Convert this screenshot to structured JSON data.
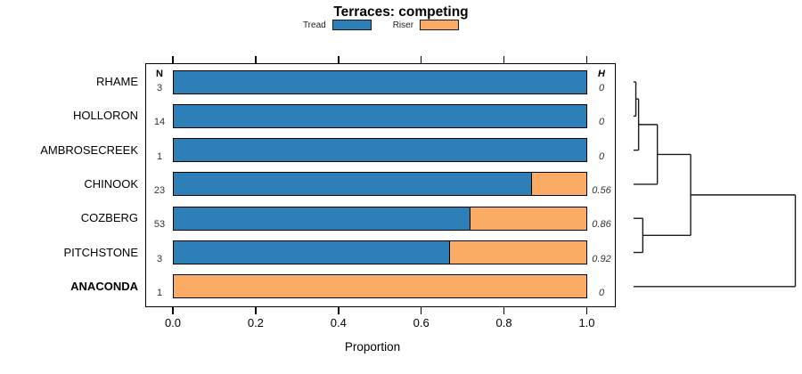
{
  "title": "Terraces: competing",
  "legend": {
    "items": [
      {
        "label": "Tread"
      },
      {
        "label": "Riser"
      }
    ]
  },
  "chart_data": {
    "type": "bar",
    "stacked": true,
    "orientation": "horizontal",
    "title": "Terraces: competing",
    "xlabel": "Proportion",
    "xlim": [
      0,
      1
    ],
    "xticks": [
      "0.0",
      "0.2",
      "0.4",
      "0.6",
      "0.8",
      "1.0"
    ],
    "categories": [
      "RHAME",
      "HOLLORON",
      "AMBROSECREEK",
      "CHINOOK",
      "COZBERG",
      "PITCHSTONE",
      "ANACONDA"
    ],
    "bold_categories": [
      "ANACONDA"
    ],
    "n_label": "N",
    "h_label": "H",
    "n": [
      3,
      14,
      1,
      23,
      53,
      3,
      1
    ],
    "h": [
      "0",
      "0",
      "0",
      "0.56",
      "0.86",
      "0.92",
      "0"
    ],
    "series": [
      {
        "name": "Tread",
        "color": "#2d7fb8",
        "values": [
          1,
          1,
          1,
          0.87,
          0.72,
          0.67,
          0
        ]
      },
      {
        "name": "Riser",
        "color": "#fcab64",
        "values": [
          0,
          0,
          0,
          0.13,
          0.28,
          0.33,
          1
        ]
      }
    ],
    "dendrogram": {
      "leaves": [
        "RHAME",
        "HOLLORON",
        "AMBROSECREEK",
        "CHINOOK",
        "COZBERG",
        "PITCHSTONE",
        "ANACONDA"
      ],
      "merges": [
        {
          "a": "RHAME",
          "b": "HOLLORON",
          "height": 0.014
        },
        {
          "a": "#0",
          "b": "AMBROSECREEK",
          "height": 0.031
        },
        {
          "a": "#1",
          "b": "CHINOOK",
          "height": 0.147
        },
        {
          "a": "COZBERG",
          "b": "PITCHSTONE",
          "height": 0.057
        },
        {
          "a": "#2",
          "b": "#3",
          "height": 0.353
        },
        {
          "a": "#4",
          "b": "ANACONDA",
          "height": 1.0
        }
      ]
    }
  }
}
